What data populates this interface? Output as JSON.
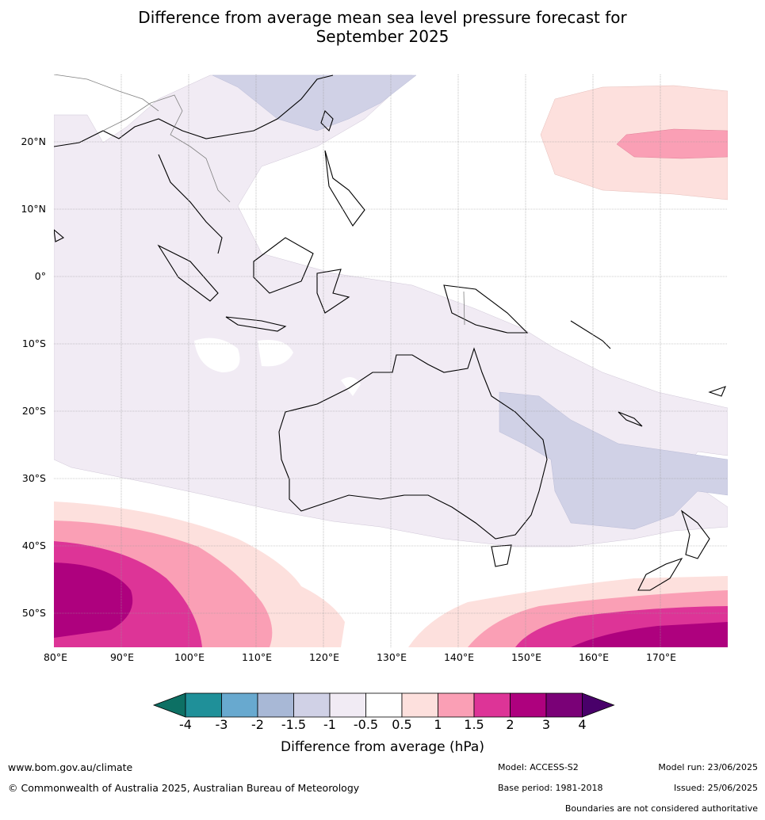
{
  "title_line1": "Difference from average mean sea level pressure forecast for",
  "title_line2": "September 2025",
  "map": {
    "lat_labels": [
      "20°N",
      "10°N",
      "0°",
      "10°S",
      "20°S",
      "30°S",
      "40°S",
      "50°S"
    ],
    "lon_labels": [
      "80°E",
      "90°E",
      "100°E",
      "110°E",
      "120°E",
      "130°E",
      "140°E",
      "150°E",
      "160°E",
      "170°E"
    ],
    "lon_range": [
      80,
      180
    ],
    "lat_range": [
      -55,
      30
    ]
  },
  "colorbar": {
    "ticks": [
      "-4",
      "-3",
      "-2",
      "-1.5",
      "-1",
      "-0.5",
      "0.5",
      "1",
      "1.5",
      "2",
      "3",
      "4"
    ],
    "colors": [
      "#0d7064",
      "#1f9099",
      "#68a9cf",
      "#a8b8d6",
      "#d0d1e6",
      "#f1ebf4",
      "#ffffff",
      "#fde0dd",
      "#fa9fb5",
      "#dd3497",
      "#ae017e",
      "#7a0177",
      "#49006a"
    ],
    "label": "Difference from average (hPa)"
  },
  "footer": {
    "website": "www.bom.gov.au/climate",
    "copyright": "© Commonwealth of Australia 2025, Australian Bureau of Meteorology",
    "model": "Model: ACCESS-S2",
    "model_run": "Model run: 23/06/2025",
    "base_period": "Base period: 1981-2018",
    "issued": "Issued: 25/06/2025",
    "disclaimer": "Boundaries are not considered authoritative"
  }
}
